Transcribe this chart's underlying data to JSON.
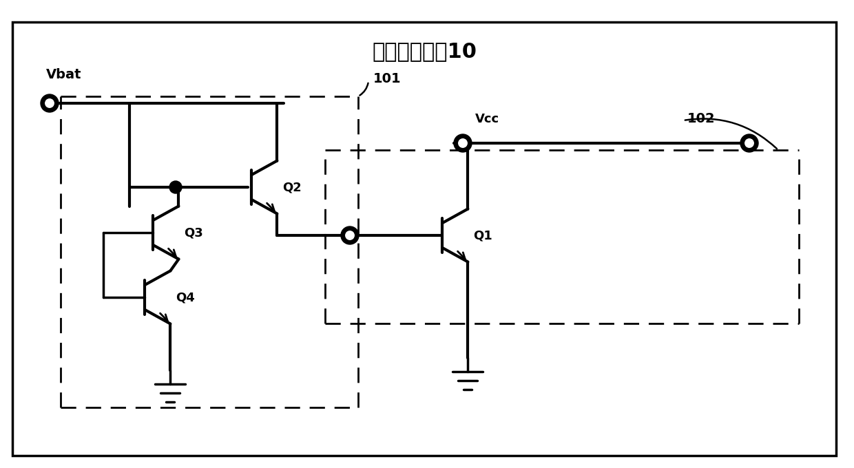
{
  "title": "信号放大电路10",
  "bg_color": "#ffffff",
  "line_color": "#000000",
  "lw": 2.5,
  "vbat_label": "Vbat",
  "vcc_label": "Vcc",
  "q1_label": "Q1",
  "q2_label": "Q2",
  "q3_label": "Q3",
  "q4_label": "Q4",
  "label101": "101",
  "label102": "102"
}
